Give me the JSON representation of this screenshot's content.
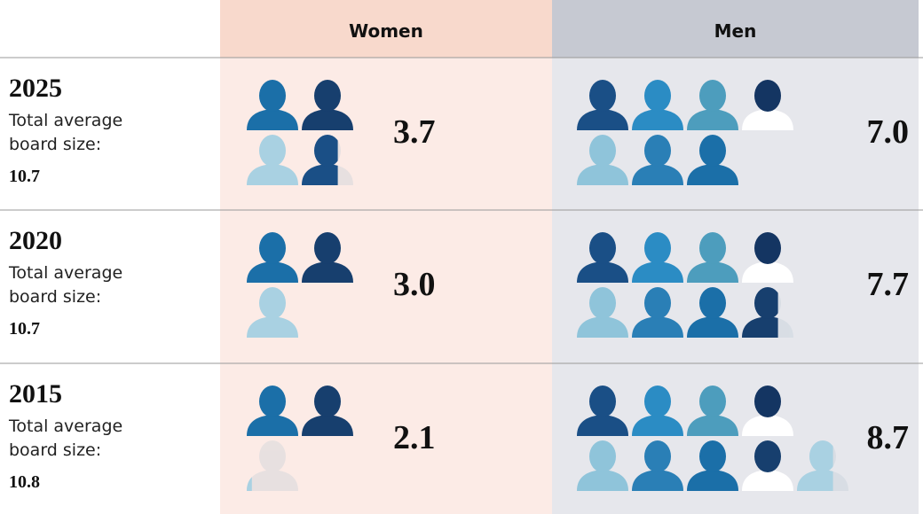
{
  "header": {
    "women": "Women",
    "men": "Men"
  },
  "rows": [
    {
      "year": "2025",
      "caption": "Total average board size:",
      "board_size": "10.7",
      "women": "3.7",
      "men": "7.0"
    },
    {
      "year": "2020",
      "caption": "Total average board size:",
      "board_size": "10.7",
      "women": "3.0",
      "men": "7.7"
    },
    {
      "year": "2015",
      "caption": "Total average board size:",
      "board_size": "10.8",
      "women": "2.1",
      "men": "8.7"
    }
  ]
}
